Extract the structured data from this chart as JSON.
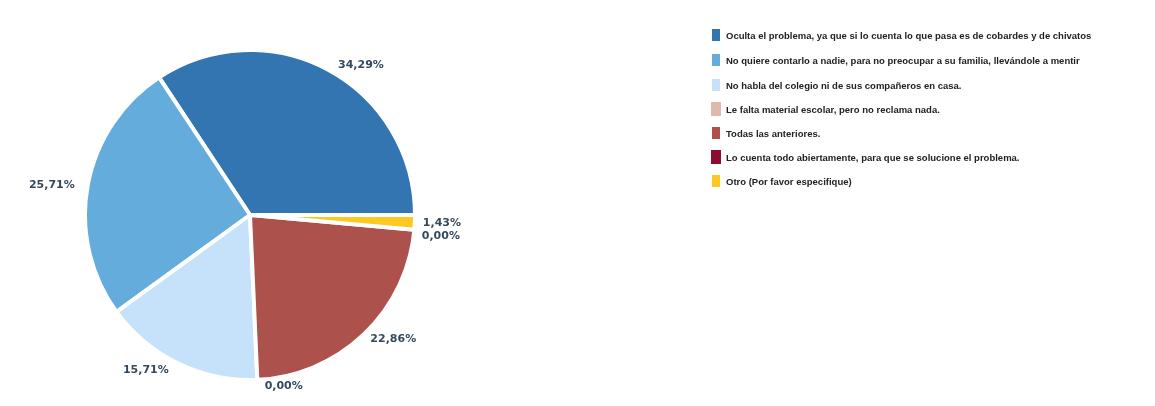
{
  "chart_data": {
    "type": "pie",
    "categories": [
      "Oculta el problema, ya que si lo cuenta lo que pasa es de cobardes y de chivatos",
      "No quiere contarlo a nadie, para no preocupar a su familia, llevándole a mentir",
      "No habla del colegio ni de sus compañeros en casa.",
      "Le falta material escolar, pero no reclama nada.",
      "Todas las anteriores.",
      "Lo cuenta todo abiertamente, para que se solucione el problema.",
      "Otro (Por favor especifique)"
    ],
    "values": [
      34.29,
      25.71,
      15.71,
      0,
      22.86,
      0,
      1.43
    ],
    "value_labels": [
      "34,29%",
      "25,71%",
      "15,71%",
      "0,00%",
      "22,86%",
      "0,00%",
      "1,43%"
    ],
    "colors": [
      "#3275b0",
      "#64acdc",
      "#c6e2fa",
      "#e0b9ae",
      "#ad514c",
      "#8e0a2e",
      "#fbc922"
    ],
    "legend": "right"
  }
}
